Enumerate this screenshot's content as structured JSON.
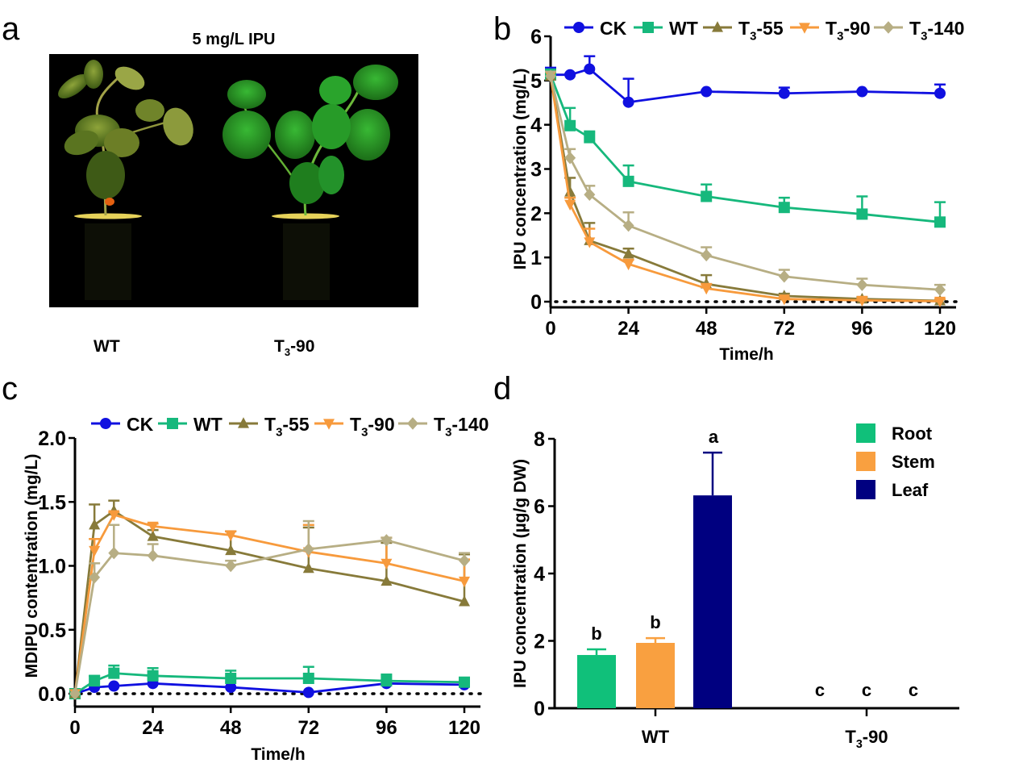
{
  "panels": {
    "a": {
      "letter": "a",
      "title": "5 mg/L IPU",
      "labels": {
        "left": "WT",
        "right_main": "T",
        "right_sub": "3",
        "right_suffix": "-90"
      },
      "description": "Photograph of two soybean plants on black background: WT plant wilted/yellowing, T3-90 plant green and healthy"
    },
    "b": {
      "letter": "b"
    },
    "c": {
      "letter": "c"
    },
    "d": {
      "letter": "d"
    }
  },
  "colors": {
    "CK": "#1010e0",
    "WT": "#16b87c",
    "T3-55": "#877a3a",
    "T3-90": "#f79a3c",
    "T3-140": "#b7ae84",
    "Root": "#10c07a",
    "Stem": "#f9a040",
    "Leaf": "#000080"
  },
  "chart_data": [
    {
      "id": "b",
      "type": "line",
      "title": "",
      "xlabel": "Time/h",
      "ylabel": "IPU concentration (mg/L)",
      "xlim": [
        0,
        124
      ],
      "ylim": [
        0,
        6
      ],
      "xticks": [
        0,
        24,
        48,
        72,
        96,
        120
      ],
      "yticks": [
        0,
        1,
        2,
        3,
        4,
        5,
        6
      ],
      "legend_position": "top",
      "reference_line": {
        "y": 0,
        "style": "dotted"
      },
      "x": [
        0,
        6,
        12,
        24,
        48,
        72,
        96,
        120
      ],
      "series": [
        {
          "name": "CK",
          "sub": "",
          "marker": "circle",
          "values": [
            5.13,
            5.13,
            5.26,
            4.51,
            4.75,
            4.71,
            4.75,
            4.71
          ],
          "err_upper": [
            5.29,
            5.15,
            5.55,
            5.04,
            4.77,
            4.84,
            4.77,
            4.91
          ]
        },
        {
          "name": "WT",
          "sub": "",
          "marker": "square",
          "values": [
            5.13,
            3.98,
            3.71,
            2.72,
            2.38,
            2.13,
            1.98,
            1.8
          ],
          "err_upper": [
            5.25,
            4.38,
            3.85,
            3.08,
            2.65,
            2.35,
            2.38,
            2.25
          ]
        },
        {
          "name": "T3-55",
          "sub": "3",
          "marker": "triangle-up",
          "values": [
            5.1,
            2.48,
            1.38,
            1.08,
            0.4,
            0.13,
            0.06,
            0.02
          ],
          "err_upper": [
            5.2,
            2.8,
            1.78,
            1.2,
            0.6,
            0.18,
            0.1,
            0.05
          ]
        },
        {
          "name": "T3-90",
          "sub": "3",
          "marker": "triangle-down",
          "values": [
            5.1,
            2.2,
            1.35,
            0.85,
            0.3,
            0.06,
            0.03,
            0.01
          ],
          "err_upper": [
            5.2,
            2.35,
            1.65,
            0.95,
            0.4,
            0.1,
            0.08,
            0.06
          ]
        },
        {
          "name": "T3-140",
          "sub": "3",
          "marker": "diamond",
          "values": [
            5.1,
            3.25,
            2.42,
            1.72,
            1.05,
            0.57,
            0.38,
            0.27
          ],
          "err_upper": [
            5.2,
            3.45,
            2.62,
            2.02,
            1.23,
            0.72,
            0.52,
            0.38
          ]
        }
      ]
    },
    {
      "id": "c",
      "type": "line",
      "title": "",
      "xlabel": "Time/h",
      "ylabel": "MDIPU contentration (mg/L)",
      "xlim": [
        0,
        124
      ],
      "ylim": [
        0,
        2.0
      ],
      "xticks": [
        0,
        24,
        48,
        72,
        96,
        120
      ],
      "yticks": [
        "0.0",
        "0.5",
        "1.0",
        "1.5",
        "2.0"
      ],
      "legend_position": "top",
      "reference_line": {
        "y": 0,
        "style": "dotted"
      },
      "x": [
        0,
        6,
        12,
        24,
        48,
        72,
        96,
        120
      ],
      "series": [
        {
          "name": "CK",
          "sub": "",
          "marker": "circle",
          "values": [
            0,
            0.05,
            0.06,
            0.08,
            0.05,
            0.01,
            0.08,
            0.07
          ],
          "err_upper": [
            0,
            0.06,
            0.07,
            0.09,
            0.06,
            0.02,
            0.09,
            0.08
          ]
        },
        {
          "name": "WT",
          "sub": "",
          "marker": "square",
          "values": [
            0,
            0.1,
            0.16,
            0.14,
            0.12,
            0.12,
            0.1,
            0.09
          ],
          "err_upper": [
            0,
            0.14,
            0.22,
            0.2,
            0.18,
            0.21,
            0.15,
            0.11
          ]
        },
        {
          "name": "T3-55",
          "sub": "3",
          "marker": "triangle-up",
          "values": [
            0,
            1.32,
            1.43,
            1.23,
            1.12,
            0.98,
            0.88,
            0.72
          ],
          "err_upper": [
            0,
            1.48,
            1.51,
            1.28,
            1.27,
            1.3,
            1.18,
            1.09
          ]
        },
        {
          "name": "T3-90",
          "sub": "3",
          "marker": "triangle-down",
          "values": [
            0,
            1.12,
            1.4,
            1.31,
            1.24,
            1.11,
            1.02,
            0.88
          ],
          "err_upper": [
            0,
            1.21,
            1.42,
            1.33,
            1.27,
            1.32,
            1.22,
            1.05
          ]
        },
        {
          "name": "T3-140",
          "sub": "3",
          "marker": "diamond",
          "values": [
            0,
            0.91,
            1.1,
            1.08,
            1.0,
            1.13,
            1.2,
            1.04
          ],
          "err_upper": [
            0,
            1.02,
            1.32,
            1.17,
            1.04,
            1.35,
            1.22,
            1.1
          ]
        }
      ]
    },
    {
      "id": "d",
      "type": "bar",
      "title": "",
      "xlabel": "",
      "ylabel": "IPU concentration (µg/g DW)",
      "ylim": [
        0,
        8
      ],
      "yticks": [
        0,
        2,
        4,
        6,
        8
      ],
      "legend_position": "top-right",
      "categories": [
        {
          "main": "WT",
          "sub": "",
          "suffix": ""
        },
        {
          "main": "T",
          "sub": "3",
          "suffix": "-90"
        }
      ],
      "series": [
        {
          "name": "Root",
          "values": [
            1.58,
            0
          ],
          "err_upper": [
            1.75,
            0
          ],
          "letters": [
            "b",
            "c"
          ]
        },
        {
          "name": "Stem",
          "values": [
            1.94,
            0
          ],
          "err_upper": [
            2.08,
            0
          ],
          "letters": [
            "b",
            "c"
          ]
        },
        {
          "name": "Leaf",
          "values": [
            6.32,
            0
          ],
          "err_upper": [
            7.59,
            0
          ],
          "letters": [
            "a",
            "c"
          ]
        }
      ]
    }
  ]
}
